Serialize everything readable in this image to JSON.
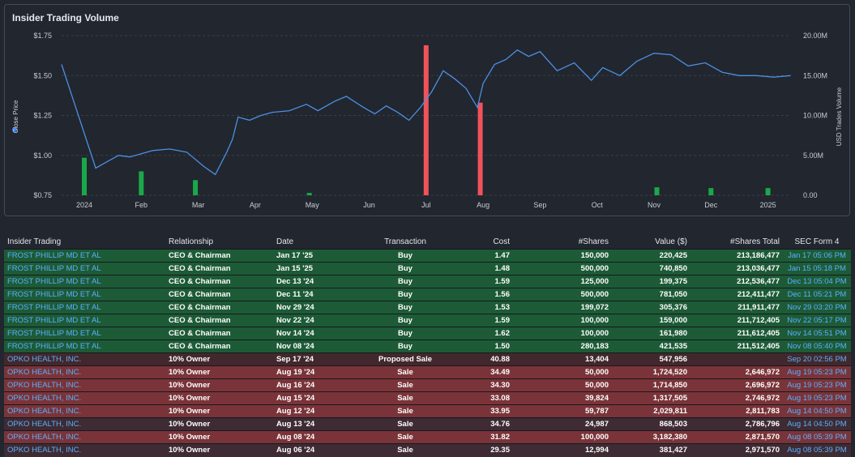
{
  "chart_title": "Insider Trading Volume",
  "chart_data": {
    "type": "line+bar",
    "title": "Insider Trading Volume",
    "ylabel_left": "Close Price",
    "ylabel_right": "USD Trades Volume",
    "left_ticks": [
      "$1.75",
      "$1.50",
      "$1.25",
      "$1.00",
      "$0.75"
    ],
    "right_ticks": [
      "20.00M",
      "15.00M",
      "10.00M",
      "5.00M",
      "0.00"
    ],
    "x_ticks": [
      "2024",
      "Feb",
      "Mar",
      "Apr",
      "May",
      "Jun",
      "Jul",
      "Aug",
      "Sep",
      "Oct",
      "Nov",
      "Dec",
      "2025"
    ],
    "ylim_left": [
      0.75,
      1.75
    ],
    "ylim_right": [
      0,
      20000000
    ],
    "price_series": {
      "name": "Close Price",
      "x": [
        0,
        0.2,
        0.4,
        0.6,
        0.8,
        1.0,
        1.2,
        1.5,
        1.8,
        2.1,
        2.3,
        2.5,
        2.6,
        2.7,
        2.9,
        3.1,
        3.3,
        3.6,
        3.9,
        4.1,
        4.4,
        4.6,
        4.9,
        5.1,
        5.3,
        5.5,
        5.7,
        5.9,
        6.1,
        6.3,
        6.5,
        6.7,
        6.9,
        7.0,
        7.2,
        7.4,
        7.6,
        7.8,
        8.0,
        8.3,
        8.6,
        8.9,
        9.1,
        9.4,
        9.7,
        10.0,
        10.3,
        10.6,
        10.9,
        11.2,
        11.5,
        11.8,
        12.1,
        12.4
      ],
      "values": [
        1.57,
        0.92,
        0.96,
        1.0,
        0.99,
        1.01,
        1.03,
        1.04,
        1.02,
        0.93,
        0.88,
        1.02,
        1.1,
        1.24,
        1.22,
        1.25,
        1.27,
        1.28,
        1.32,
        1.28,
        1.34,
        1.37,
        1.3,
        1.26,
        1.31,
        1.27,
        1.22,
        1.3,
        1.4,
        1.53,
        1.48,
        1.42,
        1.3,
        1.45,
        1.57,
        1.6,
        1.66,
        1.62,
        1.65,
        1.53,
        1.58,
        1.47,
        1.55,
        1.5,
        1.59,
        1.64,
        1.63,
        1.56,
        1.58,
        1.52,
        1.5,
        1.5,
        1.49,
        1.5
      ]
    },
    "volume_series": [
      {
        "x": 0.0,
        "value": 4700000,
        "type": "buy"
      },
      {
        "x": 1.0,
        "value": 3000000,
        "type": "buy"
      },
      {
        "x": 1.95,
        "value": 1900000,
        "type": "buy"
      },
      {
        "x": 3.95,
        "value": 300000,
        "type": "buy"
      },
      {
        "x": 6.0,
        "value": 18800000,
        "type": "sale"
      },
      {
        "x": 6.95,
        "value": 11600000,
        "type": "sale"
      },
      {
        "x": 10.05,
        "value": 1000000,
        "type": "buy"
      },
      {
        "x": 11.0,
        "value": 900000,
        "type": "buy"
      },
      {
        "x": 12.0,
        "value": 900000,
        "type": "buy"
      }
    ]
  },
  "colors": {
    "buy": "#1aa84a",
    "sale": "#f2525a",
    "line": "#4a90e2",
    "legend_dot": "#3b82f6"
  },
  "table": {
    "headers": [
      "Insider Trading",
      "Relationship",
      "Date",
      "Transaction",
      "Cost",
      "#Shares",
      "Value ($)",
      "#Shares Total",
      "SEC Form 4"
    ],
    "rows": [
      {
        "style": "buy",
        "name": "FROST PHILLIP MD ET AL",
        "relationship": "CEO & Chairman",
        "date": "Jan 17 '25",
        "transaction": "Buy",
        "cost": "1.47",
        "shares": "150,000",
        "value": "220,425",
        "total": "213,186,477",
        "sec": "Jan 17 05:06 PM"
      },
      {
        "style": "buy",
        "name": "FROST PHILLIP MD ET AL",
        "relationship": "CEO & Chairman",
        "date": "Jan 15 '25",
        "transaction": "Buy",
        "cost": "1.48",
        "shares": "500,000",
        "value": "740,850",
        "total": "213,036,477",
        "sec": "Jan 15 05:18 PM"
      },
      {
        "style": "buy",
        "name": "FROST PHILLIP MD ET AL",
        "relationship": "CEO & Chairman",
        "date": "Dec 13 '24",
        "transaction": "Buy",
        "cost": "1.59",
        "shares": "125,000",
        "value": "199,375",
        "total": "212,536,477",
        "sec": "Dec 13 05:04 PM"
      },
      {
        "style": "buy",
        "name": "FROST PHILLIP MD ET AL",
        "relationship": "CEO & Chairman",
        "date": "Dec 11 '24",
        "transaction": "Buy",
        "cost": "1.56",
        "shares": "500,000",
        "value": "781,050",
        "total": "212,411,477",
        "sec": "Dec 11 05:21 PM"
      },
      {
        "style": "buy",
        "name": "FROST PHILLIP MD ET AL",
        "relationship": "CEO & Chairman",
        "date": "Nov 29 '24",
        "transaction": "Buy",
        "cost": "1.53",
        "shares": "199,072",
        "value": "305,376",
        "total": "211,911,477",
        "sec": "Nov 29 03:20 PM"
      },
      {
        "style": "buy",
        "name": "FROST PHILLIP MD ET AL",
        "relationship": "CEO & Chairman",
        "date": "Nov 22 '24",
        "transaction": "Buy",
        "cost": "1.59",
        "shares": "100,000",
        "value": "159,000",
        "total": "211,712,405",
        "sec": "Nov 22 05:17 PM"
      },
      {
        "style": "buy",
        "name": "FROST PHILLIP MD ET AL",
        "relationship": "CEO & Chairman",
        "date": "Nov 14 '24",
        "transaction": "Buy",
        "cost": "1.62",
        "shares": "100,000",
        "value": "161,980",
        "total": "211,612,405",
        "sec": "Nov 14 05:51 PM"
      },
      {
        "style": "buy",
        "name": "FROST PHILLIP MD ET AL",
        "relationship": "CEO & Chairman",
        "date": "Nov 08 '24",
        "transaction": "Buy",
        "cost": "1.50",
        "shares": "280,183",
        "value": "421,535",
        "total": "211,512,405",
        "sec": "Nov 08 05:40 PM"
      },
      {
        "style": "proposed",
        "name": "OPKO HEALTH, INC.",
        "relationship": "10% Owner",
        "date": "Sep 17 '24",
        "transaction": "Proposed Sale",
        "cost": "40.88",
        "shares": "13,404",
        "value": "547,956",
        "total": "",
        "sec": "Sep 20 02:56 PM"
      },
      {
        "style": "sale",
        "name": "OPKO HEALTH, INC.",
        "relationship": "10% Owner",
        "date": "Aug 19 '24",
        "transaction": "Sale",
        "cost": "34.49",
        "shares": "50,000",
        "value": "1,724,520",
        "total": "2,646,972",
        "sec": "Aug 19 05:23 PM"
      },
      {
        "style": "sale",
        "name": "OPKO HEALTH, INC.",
        "relationship": "10% Owner",
        "date": "Aug 16 '24",
        "transaction": "Sale",
        "cost": "34.30",
        "shares": "50,000",
        "value": "1,714,850",
        "total": "2,696,972",
        "sec": "Aug 19 05:23 PM"
      },
      {
        "style": "sale",
        "name": "OPKO HEALTH, INC.",
        "relationship": "10% Owner",
        "date": "Aug 15 '24",
        "transaction": "Sale",
        "cost": "33.08",
        "shares": "39,824",
        "value": "1,317,505",
        "total": "2,746,972",
        "sec": "Aug 19 05:23 PM"
      },
      {
        "style": "sale",
        "name": "OPKO HEALTH, INC.",
        "relationship": "10% Owner",
        "date": "Aug 12 '24",
        "transaction": "Sale",
        "cost": "33.95",
        "shares": "59,787",
        "value": "2,029,811",
        "total": "2,811,783",
        "sec": "Aug 14 04:50 PM"
      },
      {
        "style": "sale-dark",
        "name": "OPKO HEALTH, INC.",
        "relationship": "10% Owner",
        "date": "Aug 13 '24",
        "transaction": "Sale",
        "cost": "34.76",
        "shares": "24,987",
        "value": "868,503",
        "total": "2,786,796",
        "sec": "Aug 14 04:50 PM"
      },
      {
        "style": "sale",
        "name": "OPKO HEALTH, INC.",
        "relationship": "10% Owner",
        "date": "Aug 08 '24",
        "transaction": "Sale",
        "cost": "31.82",
        "shares": "100,000",
        "value": "3,182,380",
        "total": "2,871,570",
        "sec": "Aug 08 05:39 PM"
      },
      {
        "style": "sale-dark",
        "name": "OPKO HEALTH, INC.",
        "relationship": "10% Owner",
        "date": "Aug 06 '24",
        "transaction": "Sale",
        "cost": "29.35",
        "shares": "12,994",
        "value": "381,427",
        "total": "2,971,570",
        "sec": "Aug 08 05:39 PM"
      }
    ]
  }
}
